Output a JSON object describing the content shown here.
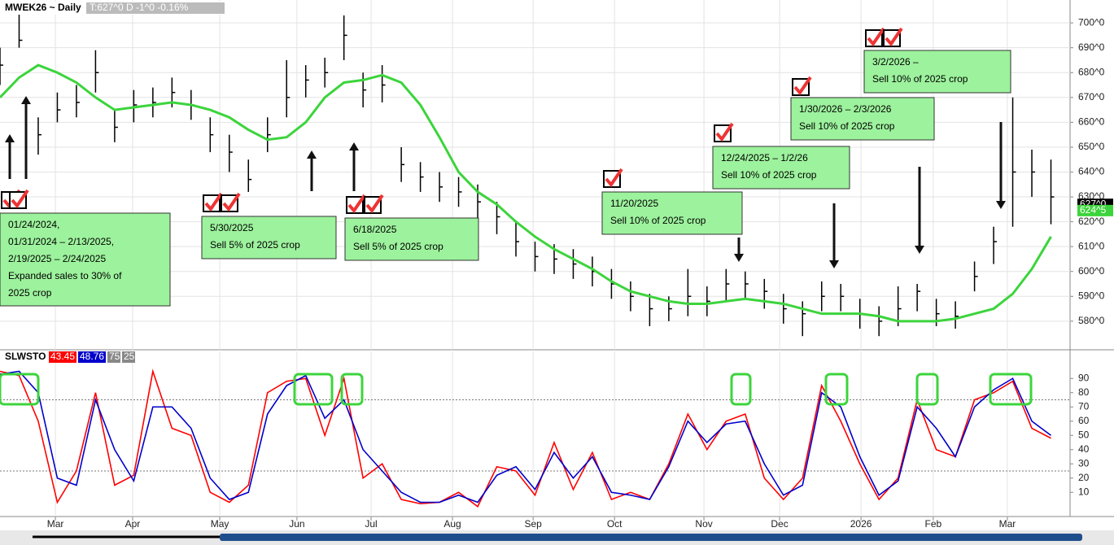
{
  "chart_data": [
    {
      "type": "ohlc",
      "title": "MWEK26 ~ Daily",
      "subtitle": "T:627^0 D  -1^0  -0.16%",
      "x": [
        0,
        5,
        10,
        15,
        20,
        25,
        30,
        35,
        40,
        45,
        50,
        55,
        60,
        65,
        70,
        75,
        80,
        85,
        90,
        95,
        100,
        105,
        110,
        115,
        120,
        125,
        130,
        135,
        140,
        145,
        150,
        155,
        160,
        165,
        170,
        175,
        180,
        185,
        190,
        195,
        200,
        205,
        210,
        215,
        220,
        225,
        230,
        235,
        240,
        245,
        250,
        255,
        260,
        265,
        270,
        275
      ],
      "xlim": [
        0,
        280
      ],
      "xticks": [
        {
          "value": 14.5,
          "label": "Mar"
        },
        {
          "value": 34.7,
          "label": "Apr"
        },
        {
          "value": 57.5,
          "label": "May"
        },
        {
          "value": 77.7,
          "label": "Jun"
        },
        {
          "value": 97.1,
          "label": "Jul"
        },
        {
          "value": 118.4,
          "label": "Aug"
        },
        {
          "value": 139.5,
          "label": "Sep"
        },
        {
          "value": 160.8,
          "label": "Oct"
        },
        {
          "value": 184.2,
          "label": "Nov"
        },
        {
          "value": 204,
          "label": "Dec"
        },
        {
          "value": 225.3,
          "label": "2026"
        },
        {
          "value": 244.2,
          "label": "Feb"
        },
        {
          "value": 263.6,
          "label": "Mar"
        }
      ],
      "ylim": [
        568.5,
        709.2
      ],
      "yticks": [
        {
          "value": 580,
          "label": "580^0"
        },
        {
          "value": 590,
          "label": "590^0"
        },
        {
          "value": 600,
          "label": "600^0"
        },
        {
          "value": 610,
          "label": "610^0"
        },
        {
          "value": 620,
          "label": "620^0"
        },
        {
          "value": 630,
          "label": "630^0"
        },
        {
          "value": 640,
          "label": "640^0"
        },
        {
          "value": 650,
          "label": "650^0"
        },
        {
          "value": 660,
          "label": "660^0"
        },
        {
          "value": 670,
          "label": "670^0"
        },
        {
          "value": 680,
          "label": "680^0"
        },
        {
          "value": 690,
          "label": "690^0"
        },
        {
          "value": 700,
          "label": "700^0"
        }
      ],
      "grid": true,
      "color": "#000000",
      "high": [
        690,
        708,
        662,
        672,
        675,
        689,
        665,
        673,
        674,
        678,
        673,
        662,
        655,
        645,
        662,
        685,
        683,
        686,
        703,
        680,
        683,
        650,
        644,
        640,
        638,
        635,
        628,
        620,
        612,
        611,
        609,
        606,
        601,
        596,
        591,
        590,
        601,
        594,
        601,
        600,
        597,
        591,
        588,
        596,
        595,
        589,
        586,
        594,
        595,
        589,
        588,
        604,
        618,
        670,
        649,
        645
      ],
      "low": [
        675,
        690,
        647,
        660,
        662,
        672,
        652,
        660,
        662,
        666,
        661,
        648,
        640,
        632,
        648,
        662,
        670,
        674,
        685,
        666,
        668,
        636,
        632,
        628,
        626,
        620,
        615,
        606,
        600,
        599,
        597,
        594,
        589,
        584,
        578,
        580,
        582,
        582,
        588,
        589,
        585,
        579,
        574,
        584,
        584,
        577,
        574,
        578,
        584,
        578,
        577,
        592,
        603,
        618,
        630,
        619
      ],
      "close": [
        683,
        693,
        655,
        665,
        668,
        680,
        658,
        667,
        668,
        672,
        667,
        655,
        648,
        637,
        655,
        670,
        677,
        680,
        695,
        673,
        675,
        643,
        638,
        634,
        632,
        628,
        622,
        612,
        606,
        605,
        603,
        600,
        595,
        590,
        585,
        585,
        590,
        588,
        595,
        595,
        592,
        585,
        583,
        590,
        590,
        583,
        580,
        585,
        592,
        583,
        582,
        598,
        612,
        640,
        640,
        630
      ],
      "series": [
        {
          "name": "MA",
          "color": "#3cd43c",
          "values": [
            670,
            678,
            683,
            680,
            676,
            670,
            665,
            666,
            667,
            668,
            667,
            665,
            662,
            657,
            653,
            654,
            660,
            670,
            676,
            677,
            679,
            676,
            667,
            654,
            640,
            632,
            627,
            620,
            614,
            609,
            605,
            601,
            596,
            592,
            590,
            588,
            587,
            587,
            588,
            589,
            588,
            587,
            585,
            583,
            583,
            583,
            582,
            580,
            580,
            580,
            581,
            583,
            585,
            591,
            601,
            614
          ]
        }
      ],
      "last_labels": [
        {
          "value": 627,
          "label": "627^0",
          "color": "#000000"
        },
        {
          "value": 624.5,
          "label": "624^5",
          "color": "#3cd43c"
        }
      ],
      "annotations": [
        [
          "01/24/2024,",
          "01/31/2024 – 2/13/2025,",
          "2/19/2025 – 2/24/2025",
          "Expanded sales to 30% of",
          "2025 crop"
        ],
        [
          "5/30/2025",
          "Sell 5% of 2025 crop"
        ],
        [
          "6/18/2025",
          "Sell 5% of 2025 crop"
        ],
        [
          "11/20/2025",
          "Sell 10% of 2025 crop"
        ],
        [
          "12/24/2025 – 1/2/26",
          "Sell 10% of 2025 crop"
        ],
        [
          "1/30/2026 – 2/3/2026",
          "Sell 10% of 2025 crop"
        ],
        [
          "3/2/2026 –",
          "Sell 10% of 2025 crop"
        ]
      ]
    },
    {
      "type": "line",
      "title": "SLWSTO",
      "ylim": [
        -7,
        109
      ],
      "yticks": [
        10,
        20,
        30,
        40,
        50,
        60,
        70,
        80,
        90
      ],
      "levels": [
        75,
        25
      ],
      "series": [
        {
          "name": "43.45",
          "color": "#ff0000",
          "values": [
            95,
            92,
            60,
            3,
            25,
            80,
            15,
            22,
            95,
            55,
            50,
            10,
            3,
            15,
            80,
            88,
            90,
            50,
            90,
            20,
            30,
            5,
            2,
            3,
            10,
            0,
            28,
            25,
            8,
            45,
            12,
            38,
            5,
            10,
            5,
            30,
            65,
            40,
            60,
            65,
            20,
            5,
            20,
            85,
            60,
            30,
            5,
            20,
            75,
            40,
            35,
            75,
            80,
            88,
            55,
            48
          ]
        },
        {
          "name": "48.76",
          "color": "#0000cc",
          "values": [
            93,
            95,
            80,
            20,
            15,
            75,
            40,
            18,
            70,
            70,
            55,
            20,
            5,
            10,
            65,
            85,
            92,
            62,
            75,
            40,
            25,
            10,
            3,
            3,
            8,
            3,
            22,
            28,
            12,
            38,
            20,
            35,
            10,
            8,
            5,
            28,
            60,
            45,
            58,
            60,
            30,
            8,
            15,
            80,
            70,
            35,
            8,
            18,
            70,
            55,
            35,
            70,
            82,
            90,
            60,
            50
          ]
        }
      ]
    }
  ]
}
